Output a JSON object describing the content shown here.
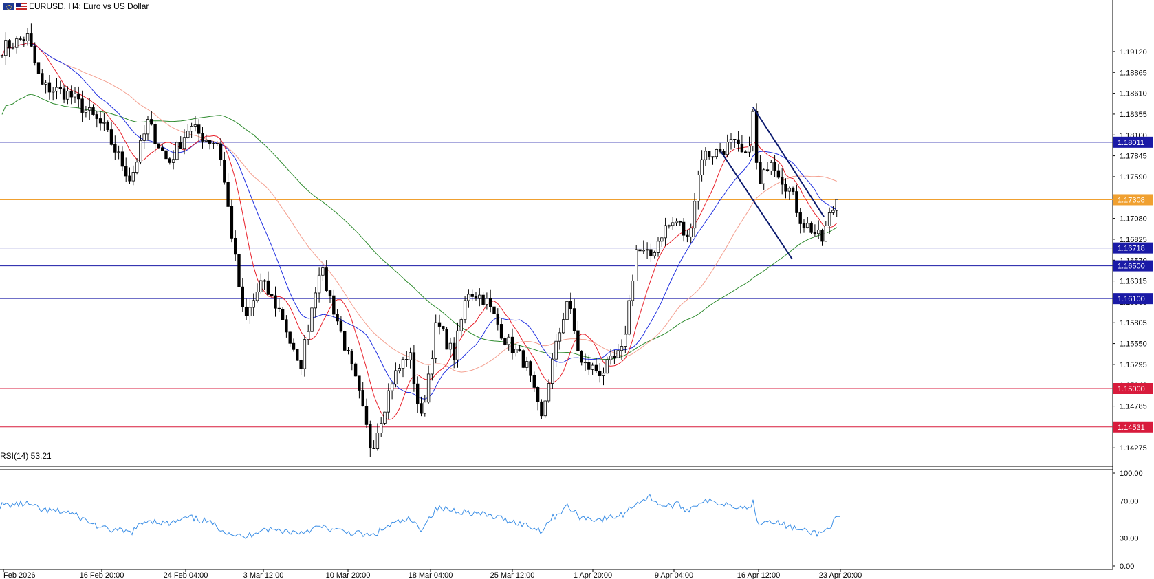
{
  "header": {
    "symbol": "EURUSD, H4:",
    "description": "Euro vs US Dollar",
    "flags": [
      "eu-flag-icon",
      "us-flag-icon"
    ]
  },
  "chart_data": [
    {
      "type": "candlestick",
      "title": "EURUSD, H4:  Euro vs US Dollar",
      "ylim": [
        1.1405,
        1.1975
      ],
      "y_ticks": [
        "1.19120",
        "1.18865",
        "1.18610",
        "1.18355",
        "1.18100",
        "1.17845",
        "1.17590",
        "1.17335",
        "1.17080",
        "1.16825",
        "1.16570",
        "1.16315",
        "1.16060",
        "1.15805",
        "1.15550",
        "1.15295",
        "1.15040",
        "1.14785",
        "1.14530",
        "1.14275"
      ],
      "x_ticks": [
        "Feb 2026",
        "16 Feb 20:00",
        "24 Feb 04:00",
        "3 Mar 12:00",
        "10 Mar 20:00",
        "18 Mar 04:00",
        "25 Mar 12:00",
        "1 Apr 20:00",
        "9 Apr 04:00",
        "16 Apr 12:00",
        "23 Apr 20:00"
      ],
      "price_levels": [
        {
          "label": "1.18011",
          "value": 1.18011,
          "color": "#1a1aa6"
        },
        {
          "label": "1.17308",
          "value": 1.17308,
          "color": "#f0a030"
        },
        {
          "label": "1.16718",
          "value": 1.16718,
          "color": "#1a1aa6"
        },
        {
          "label": "1.16500",
          "value": 1.165,
          "color": "#1a1aa6"
        },
        {
          "label": "1.16100",
          "value": 1.161,
          "color": "#1a1aa6"
        },
        {
          "label": "1.15000",
          "value": 1.15,
          "color": "#d81b3c"
        },
        {
          "label": "1.14531",
          "value": 1.14531,
          "color": "#d81b3c"
        }
      ],
      "moving_average_colors": {
        "fast": "#e8202a",
        "medium": "#2030e0",
        "slow": "#f4a090",
        "long": "#2e8b2e"
      },
      "trend_lines": [
        {
          "from": [
            1095,
            1.1844
          ],
          "to": [
            1198,
            1.171
          ]
        },
        {
          "from": [
            1048,
            1.179
          ],
          "to": [
            1152,
            1.1658
          ]
        }
      ],
      "key_points": [
        {
          "x": 0,
          "value": 1.1915
        },
        {
          "x": 40,
          "value": 1.193
        },
        {
          "x": 60,
          "value": 1.187
        },
        {
          "x": 100,
          "value": 1.186
        },
        {
          "x": 150,
          "value": 1.182
        },
        {
          "x": 190,
          "value": 1.1755
        },
        {
          "x": 215,
          "value": 1.1825
        },
        {
          "x": 245,
          "value": 1.1775
        },
        {
          "x": 275,
          "value": 1.182
        },
        {
          "x": 300,
          "value": 1.1805
        },
        {
          "x": 318,
          "value": 1.18
        },
        {
          "x": 330,
          "value": 1.173
        },
        {
          "x": 355,
          "value": 1.158
        },
        {
          "x": 380,
          "value": 1.163
        },
        {
          "x": 410,
          "value": 1.159
        },
        {
          "x": 435,
          "value": 1.152
        },
        {
          "x": 465,
          "value": 1.165
        },
        {
          "x": 490,
          "value": 1.1585
        },
        {
          "x": 520,
          "value": 1.15
        },
        {
          "x": 540,
          "value": 1.1425
        },
        {
          "x": 570,
          "value": 1.151
        },
        {
          "x": 595,
          "value": 1.1545
        },
        {
          "x": 612,
          "value": 1.146
        },
        {
          "x": 635,
          "value": 1.158
        },
        {
          "x": 660,
          "value": 1.154
        },
        {
          "x": 680,
          "value": 1.162
        },
        {
          "x": 705,
          "value": 1.161
        },
        {
          "x": 735,
          "value": 1.156
        },
        {
          "x": 765,
          "value": 1.153
        },
        {
          "x": 787,
          "value": 1.146
        },
        {
          "x": 800,
          "value": 1.152
        },
        {
          "x": 825,
          "value": 1.161
        },
        {
          "x": 845,
          "value": 1.153
        },
        {
          "x": 875,
          "value": 1.152
        },
        {
          "x": 905,
          "value": 1.1545
        },
        {
          "x": 925,
          "value": 1.167
        },
        {
          "x": 945,
          "value": 1.166
        },
        {
          "x": 965,
          "value": 1.1695
        },
        {
          "x": 985,
          "value": 1.1705
        },
        {
          "x": 1000,
          "value": 1.168
        },
        {
          "x": 1020,
          "value": 1.1785
        },
        {
          "x": 1045,
          "value": 1.179
        },
        {
          "x": 1065,
          "value": 1.18
        },
        {
          "x": 1085,
          "value": 1.178
        },
        {
          "x": 1095,
          "value": 1.1835
        },
        {
          "x": 1103,
          "value": 1.174
        },
        {
          "x": 1120,
          "value": 1.1785
        },
        {
          "x": 1135,
          "value": 1.176
        },
        {
          "x": 1150,
          "value": 1.174
        },
        {
          "x": 1165,
          "value": 1.1705
        },
        {
          "x": 1180,
          "value": 1.1695
        },
        {
          "x": 1195,
          "value": 1.168
        },
        {
          "x": 1208,
          "value": 1.1715
        },
        {
          "x": 1220,
          "value": 1.1731
        }
      ]
    },
    {
      "type": "line",
      "title": "RSI(14) 53.21",
      "ylim": [
        0,
        100
      ],
      "y_ticks": [
        "100.00",
        "70.00",
        "30.00",
        "0.00"
      ],
      "levels": [
        70,
        30
      ],
      "series": [
        {
          "color": "#3a8ee6",
          "points": [
            [
              0,
              65
            ],
            [
              40,
              67
            ],
            [
              60,
              60
            ],
            [
              100,
              58
            ],
            [
              150,
              40
            ],
            [
              190,
              36
            ],
            [
              215,
              50
            ],
            [
              245,
              45
            ],
            [
              275,
              52
            ],
            [
              300,
              48
            ],
            [
              330,
              37
            ],
            [
              355,
              30
            ],
            [
              380,
              40
            ],
            [
              410,
              38
            ],
            [
              435,
              36
            ],
            [
              465,
              42
            ],
            [
              490,
              38
            ],
            [
              520,
              35
            ],
            [
              540,
              32
            ],
            [
              570,
              45
            ],
            [
              595,
              50
            ],
            [
              612,
              40
            ],
            [
              635,
              62
            ],
            [
              660,
              60
            ],
            [
              680,
              58
            ],
            [
              705,
              55
            ],
            [
              735,
              50
            ],
            [
              765,
              44
            ],
            [
              787,
              38
            ],
            [
              800,
              50
            ],
            [
              825,
              64
            ],
            [
              845,
              52
            ],
            [
              875,
              50
            ],
            [
              905,
              55
            ],
            [
              925,
              68
            ],
            [
              945,
              74
            ],
            [
              965,
              64
            ],
            [
              985,
              66
            ],
            [
              1000,
              60
            ],
            [
              1020,
              70
            ],
            [
              1045,
              68
            ],
            [
              1065,
              66
            ],
            [
              1085,
              62
            ],
            [
              1095,
              68
            ],
            [
              1103,
              46
            ],
            [
              1120,
              50
            ],
            [
              1135,
              45
            ],
            [
              1150,
              42
            ],
            [
              1165,
              38
            ],
            [
              1180,
              36
            ],
            [
              1195,
              35
            ],
            [
              1208,
              44
            ],
            [
              1220,
              53.21
            ]
          ]
        }
      ]
    }
  ]
}
